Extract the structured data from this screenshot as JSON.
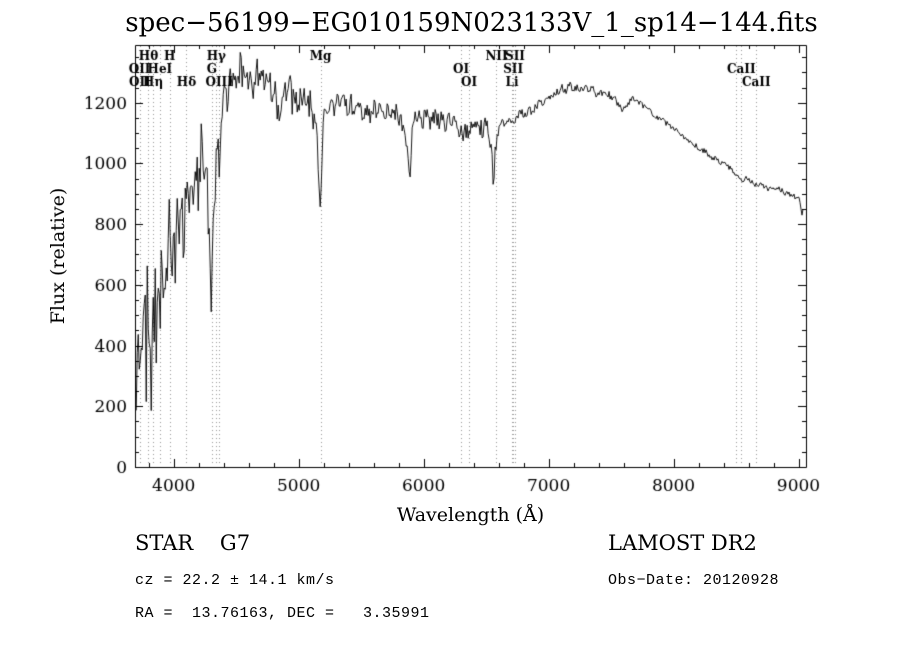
{
  "chart_data": {
    "type": "line",
    "title": "spec−56199−EG010159N023133V_1_sp14−144.fits",
    "xlabel": "Wavelength (Å)",
    "ylabel": "Flux (relative)",
    "xlim": [
      3690,
      9060
    ],
    "ylim": [
      0,
      1390
    ],
    "xticks": [
      4000,
      5000,
      6000,
      7000,
      8000,
      9000
    ],
    "yticks": [
      0,
      200,
      400,
      600,
      800,
      1000,
      1200
    ],
    "xminor": 200,
    "yminor": 50,
    "grid": false,
    "legend": false,
    "axis_color": "#000000",
    "flux_color": "#000000",
    "marker_line_color": "#999999",
    "sample_step": 8,
    "noise_seed": 7,
    "noise_regions": [
      [
        3700,
        4000,
        120
      ],
      [
        4000,
        4400,
        90
      ],
      [
        4400,
        5150,
        45
      ],
      [
        5150,
        6600,
        30
      ],
      [
        6600,
        7600,
        14
      ],
      [
        7600,
        9040,
        9
      ]
    ],
    "spectral_lines": [
      {
        "label": "OII",
        "wavelength": 3727,
        "row": 2
      },
      {
        "label": "OII",
        "wavelength": 3729,
        "row": 3
      },
      {
        "label": "Hθ",
        "wavelength": 3798,
        "row": 1
      },
      {
        "label": "Hη",
        "wavelength": 3835,
        "row": 3
      },
      {
        "label": "HeI",
        "wavelength": 3889,
        "row": 2
      },
      {
        "label": "H",
        "wavelength": 3968,
        "row": 1
      },
      {
        "label": "Hδ",
        "wavelength": 4102,
        "row": 3
      },
      {
        "label": "G",
        "wavelength": 4305,
        "row": 2
      },
      {
        "label": "Hγ",
        "wavelength": 4341,
        "row": 1
      },
      {
        "label": "OIII",
        "wavelength": 4363,
        "row": 3
      },
      {
        "label": "Mg",
        "wavelength": 5175,
        "row": 1
      },
      {
        "label": "OI",
        "wavelength": 6300,
        "row": 2
      },
      {
        "label": "OI",
        "wavelength": 6364,
        "row": 3
      },
      {
        "label": "NII",
        "wavelength": 6583,
        "row": 1
      },
      {
        "label": "Li",
        "wavelength": 6708,
        "row": 3
      },
      {
        "label": "SII",
        "wavelength": 6716,
        "row": 2
      },
      {
        "label": "SII",
        "wavelength": 6731,
        "row": 1
      },
      {
        "label": "CaII",
        "wavelength": 8498,
        "row": 0
      },
      {
        "label": "CaII",
        "wavelength": 8542,
        "row": 2
      },
      {
        "label": "CaII",
        "wavelength": 8662,
        "row": 3
      }
    ],
    "flux_envelope": [
      [
        3700,
        210
      ],
      [
        3705,
        430
      ],
      [
        3712,
        180
      ],
      [
        3720,
        520
      ],
      [
        3728,
        300
      ],
      [
        3736,
        560
      ],
      [
        3744,
        260
      ],
      [
        3752,
        480
      ],
      [
        3760,
        340
      ],
      [
        3770,
        610
      ],
      [
        3780,
        310
      ],
      [
        3790,
        640
      ],
      [
        3800,
        380
      ],
      [
        3810,
        560
      ],
      [
        3820,
        300
      ],
      [
        3830,
        620
      ],
      [
        3840,
        430
      ],
      [
        3850,
        650
      ],
      [
        3860,
        380
      ],
      [
        3875,
        660
      ],
      [
        3890,
        420
      ],
      [
        3905,
        700
      ],
      [
        3920,
        480
      ],
      [
        3935,
        760
      ],
      [
        3950,
        530
      ],
      [
        3965,
        830
      ],
      [
        3980,
        560
      ],
      [
        3995,
        870
      ],
      [
        4010,
        640
      ],
      [
        4025,
        900
      ],
      [
        4040,
        700
      ],
      [
        4060,
        870
      ],
      [
        4080,
        720
      ],
      [
        4100,
        940
      ],
      [
        4120,
        780
      ],
      [
        4140,
        980
      ],
      [
        4160,
        840
      ],
      [
        4180,
        1020
      ],
      [
        4200,
        880
      ],
      [
        4220,
        1060
      ],
      [
        4240,
        940
      ],
      [
        4260,
        1000
      ],
      [
        4280,
        820
      ],
      [
        4295,
        640
      ],
      [
        4305,
        555
      ],
      [
        4315,
        780
      ],
      [
        4330,
        950
      ],
      [
        4345,
        1060
      ],
      [
        4360,
        1000
      ],
      [
        4375,
        1120
      ],
      [
        4390,
        1180
      ],
      [
        4410,
        1240
      ],
      [
        4430,
        1200
      ],
      [
        4450,
        1280
      ],
      [
        4470,
        1240
      ],
      [
        4490,
        1320
      ],
      [
        4510,
        1260
      ],
      [
        4530,
        1330
      ],
      [
        4550,
        1280
      ],
      [
        4570,
        1320
      ],
      [
        4590,
        1250
      ],
      [
        4610,
        1300
      ],
      [
        4630,
        1220
      ],
      [
        4650,
        1290
      ],
      [
        4670,
        1310
      ],
      [
        4690,
        1250
      ],
      [
        4710,
        1300
      ],
      [
        4730,
        1260
      ],
      [
        4750,
        1320
      ],
      [
        4770,
        1270
      ],
      [
        4790,
        1230
      ],
      [
        4810,
        1280
      ],
      [
        4830,
        1160
      ],
      [
        4850,
        1120
      ],
      [
        4870,
        1220
      ],
      [
        4890,
        1260
      ],
      [
        4910,
        1210
      ],
      [
        4930,
        1250
      ],
      [
        4950,
        1200
      ],
      [
        4970,
        1240
      ],
      [
        4990,
        1190
      ],
      [
        5010,
        1230
      ],
      [
        5030,
        1180
      ],
      [
        5050,
        1220
      ],
      [
        5070,
        1170
      ],
      [
        5090,
        1210
      ],
      [
        5110,
        1160
      ],
      [
        5130,
        1120
      ],
      [
        5150,
        1060
      ],
      [
        5165,
        900
      ],
      [
        5175,
        820
      ],
      [
        5185,
        1020
      ],
      [
        5200,
        1140
      ],
      [
        5220,
        1190
      ],
      [
        5240,
        1160
      ],
      [
        5260,
        1200
      ],
      [
        5280,
        1170
      ],
      [
        5300,
        1210
      ],
      [
        5330,
        1180
      ],
      [
        5360,
        1210
      ],
      [
        5390,
        1170
      ],
      [
        5420,
        1200
      ],
      [
        5450,
        1160
      ],
      [
        5480,
        1190
      ],
      [
        5510,
        1150
      ],
      [
        5540,
        1180
      ],
      [
        5570,
        1150
      ],
      [
        5600,
        1190
      ],
      [
        5630,
        1160
      ],
      [
        5660,
        1190
      ],
      [
        5690,
        1150
      ],
      [
        5720,
        1180
      ],
      [
        5750,
        1150
      ],
      [
        5780,
        1170
      ],
      [
        5810,
        1140
      ],
      [
        5840,
        1120
      ],
      [
        5870,
        1060
      ],
      [
        5890,
        970
      ],
      [
        5905,
        1080
      ],
      [
        5930,
        1140
      ],
      [
        5960,
        1160
      ],
      [
        5990,
        1140
      ],
      [
        6020,
        1160
      ],
      [
        6050,
        1140
      ],
      [
        6080,
        1160
      ],
      [
        6110,
        1130
      ],
      [
        6140,
        1150
      ],
      [
        6170,
        1130
      ],
      [
        6200,
        1140
      ],
      [
        6230,
        1120
      ],
      [
        6260,
        1140
      ],
      [
        6290,
        1110
      ],
      [
        6310,
        1090
      ],
      [
        6330,
        1120
      ],
      [
        6350,
        1100
      ],
      [
        6380,
        1120
      ],
      [
        6410,
        1110
      ],
      [
        6440,
        1130
      ],
      [
        6470,
        1110
      ],
      [
        6500,
        1130
      ],
      [
        6520,
        1100
      ],
      [
        6545,
        1020
      ],
      [
        6560,
        930
      ],
      [
        6575,
        1060
      ],
      [
        6600,
        1120
      ],
      [
        6630,
        1140
      ],
      [
        6660,
        1130
      ],
      [
        6690,
        1150
      ],
      [
        6720,
        1140
      ],
      [
        6750,
        1160
      ],
      [
        6780,
        1170
      ],
      [
        6810,
        1160
      ],
      [
        6840,
        1180
      ],
      [
        6870,
        1170
      ],
      [
        6900,
        1190
      ],
      [
        6930,
        1200
      ],
      [
        6960,
        1190
      ],
      [
        6990,
        1210
      ],
      [
        7020,
        1220
      ],
      [
        7050,
        1230
      ],
      [
        7080,
        1240
      ],
      [
        7110,
        1250
      ],
      [
        7140,
        1240
      ],
      [
        7170,
        1255
      ],
      [
        7200,
        1245
      ],
      [
        7230,
        1255
      ],
      [
        7260,
        1240
      ],
      [
        7290,
        1250
      ],
      [
        7320,
        1235
      ],
      [
        7350,
        1245
      ],
      [
        7380,
        1230
      ],
      [
        7410,
        1240
      ],
      [
        7440,
        1225
      ],
      [
        7470,
        1235
      ],
      [
        7500,
        1220
      ],
      [
        7530,
        1210
      ],
      [
        7560,
        1190
      ],
      [
        7590,
        1170
      ],
      [
        7620,
        1190
      ],
      [
        7650,
        1205
      ],
      [
        7680,
        1215
      ],
      [
        7710,
        1205
      ],
      [
        7740,
        1195
      ],
      [
        7770,
        1185
      ],
      [
        7800,
        1180
      ],
      [
        7830,
        1165
      ],
      [
        7860,
        1155
      ],
      [
        7890,
        1145
      ],
      [
        7920,
        1140
      ],
      [
        7950,
        1130
      ],
      [
        7980,
        1120
      ],
      [
        8010,
        1110
      ],
      [
        8040,
        1100
      ],
      [
        8070,
        1090
      ],
      [
        8100,
        1080
      ],
      [
        8130,
        1075
      ],
      [
        8160,
        1065
      ],
      [
        8190,
        1055
      ],
      [
        8220,
        1045
      ],
      [
        8250,
        1040
      ],
      [
        8280,
        1030
      ],
      [
        8310,
        1020
      ],
      [
        8340,
        1015
      ],
      [
        8370,
        1005
      ],
      [
        8400,
        1000
      ],
      [
        8430,
        990
      ],
      [
        8460,
        985
      ],
      [
        8490,
        970
      ],
      [
        8520,
        955
      ],
      [
        8550,
        945
      ],
      [
        8580,
        955
      ],
      [
        8610,
        945
      ],
      [
        8640,
        935
      ],
      [
        8670,
        925
      ],
      [
        8700,
        935
      ],
      [
        8730,
        925
      ],
      [
        8760,
        915
      ],
      [
        8790,
        920
      ],
      [
        8820,
        910
      ],
      [
        8850,
        915
      ],
      [
        8880,
        905
      ],
      [
        8910,
        900
      ],
      [
        8940,
        895
      ],
      [
        8970,
        890
      ],
      [
        9000,
        885
      ],
      [
        9012,
        870
      ],
      [
        9025,
        830
      ],
      [
        9040,
        865
      ]
    ]
  },
  "annotations": {
    "class_label": "STAR    G7",
    "survey": "LAMOST DR2",
    "cz": "cz = 22.2 ± 14.1 km/s",
    "obs_date": "Obs−Date: 20120928",
    "ra_dec": "RA =  13.76163, DEC =   3.35991"
  }
}
